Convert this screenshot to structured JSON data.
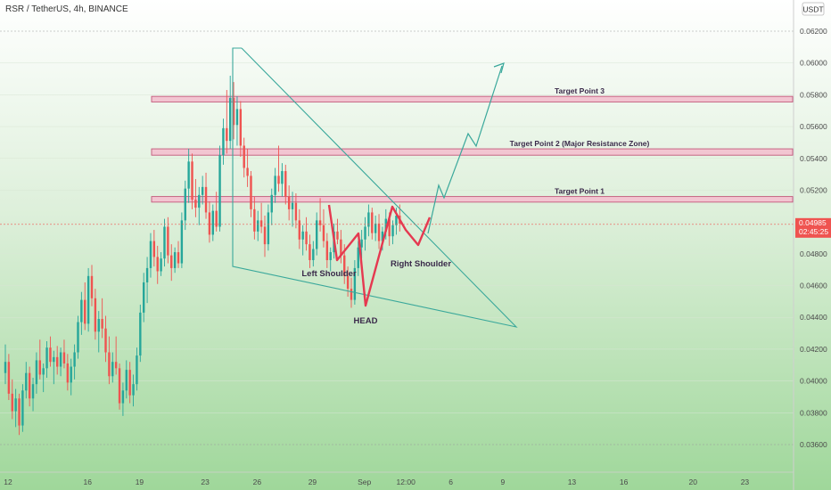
{
  "header": {
    "symbol": "RSR / TetherUS, 4h, BINANCE",
    "currency_badge": "USDT"
  },
  "colors": {
    "bg_top": "#ffffff",
    "bg_bottom": "#9fd79a",
    "up_candle": "#26a69a",
    "down_candle": "#ef5350",
    "pattern_line": "#e53950",
    "wedge_line": "#3aa89b",
    "target_fill": "#f2c5d1",
    "target_stroke": "#c3577a",
    "price_badge": "#ef5350",
    "text_dark": "#3a2a4a",
    "axis_text": "#4a4a4a"
  },
  "price_badge": {
    "price": "0.04985",
    "countdown": "02:45:25",
    "value": 0.04985
  },
  "chart_data": {
    "type": "candlestick",
    "y_axis": {
      "min": 0.0354,
      "max": 0.0628,
      "ticks": [
        "0.06200",
        "0.06000",
        "0.05800",
        "0.05600",
        "0.05400",
        "0.05200",
        "0.05000",
        "0.04800",
        "0.04600",
        "0.04400",
        "0.04200",
        "0.04000",
        "0.03800",
        "0.03600"
      ],
      "tick_values": [
        0.062,
        0.06,
        0.058,
        0.056,
        0.054,
        0.052,
        0.05,
        0.048,
        0.046,
        0.044,
        0.042,
        0.04,
        0.038,
        0.036
      ]
    },
    "x_axis": {
      "labels": [
        "12",
        "16",
        "19",
        "23",
        "26",
        "29",
        "Sep",
        "12:00",
        "6",
        "9",
        "13",
        "16",
        "20",
        "23"
      ],
      "label_bars": [
        0,
        23,
        38,
        57,
        72,
        88,
        103,
        115,
        128,
        143,
        163,
        178,
        198,
        213
      ],
      "total_bars": 225
    },
    "candles_ohlc": [
      [
        0.0405,
        0.0423,
        0.0398,
        0.0412
      ],
      [
        0.0412,
        0.0417,
        0.0388,
        0.0392
      ],
      [
        0.0392,
        0.0401,
        0.0376,
        0.0381
      ],
      [
        0.0381,
        0.0395,
        0.0371,
        0.0389
      ],
      [
        0.0389,
        0.0392,
        0.0366,
        0.0372
      ],
      [
        0.0372,
        0.0398,
        0.0368,
        0.0394
      ],
      [
        0.0394,
        0.0412,
        0.0389,
        0.0405
      ],
      [
        0.0405,
        0.0409,
        0.0384,
        0.0389
      ],
      [
        0.0389,
        0.0402,
        0.0381,
        0.0398
      ],
      [
        0.0398,
        0.0418,
        0.0392,
        0.0413
      ],
      [
        0.0413,
        0.0426,
        0.0401,
        0.0404
      ],
      [
        0.0404,
        0.0411,
        0.0393,
        0.0408
      ],
      [
        0.0408,
        0.0425,
        0.0402,
        0.0421
      ],
      [
        0.0421,
        0.0428,
        0.0409,
        0.0412
      ],
      [
        0.0412,
        0.0419,
        0.0398,
        0.0415
      ],
      [
        0.0415,
        0.0422,
        0.0404,
        0.0409
      ],
      [
        0.0409,
        0.0421,
        0.0403,
        0.0418
      ],
      [
        0.0418,
        0.0426,
        0.0408,
        0.0411
      ],
      [
        0.0411,
        0.0417,
        0.0394,
        0.0399
      ],
      [
        0.0399,
        0.0414,
        0.0391,
        0.0409
      ],
      [
        0.0409,
        0.0423,
        0.0401,
        0.0418
      ],
      [
        0.0418,
        0.0441,
        0.0414,
        0.0437
      ],
      [
        0.0437,
        0.0456,
        0.0429,
        0.0451
      ],
      [
        0.0451,
        0.0462,
        0.0432,
        0.0436
      ],
      [
        0.0436,
        0.0471,
        0.0431,
        0.0466
      ],
      [
        0.0466,
        0.0473,
        0.0447,
        0.0452
      ],
      [
        0.0452,
        0.0458,
        0.0426,
        0.0431
      ],
      [
        0.0431,
        0.0444,
        0.0418,
        0.0439
      ],
      [
        0.0439,
        0.0452,
        0.0427,
        0.0433
      ],
      [
        0.0433,
        0.0441,
        0.0412,
        0.0418
      ],
      [
        0.0418,
        0.0428,
        0.0398,
        0.0403
      ],
      [
        0.0403,
        0.0418,
        0.0399,
        0.0412
      ],
      [
        0.0412,
        0.0428,
        0.0404,
        0.0408
      ],
      [
        0.0408,
        0.0411,
        0.0382,
        0.0386
      ],
      [
        0.0386,
        0.0399,
        0.0378,
        0.0394
      ],
      [
        0.0394,
        0.0413,
        0.0389,
        0.0407
      ],
      [
        0.0407,
        0.0412,
        0.0386,
        0.0391
      ],
      [
        0.0391,
        0.0404,
        0.0384,
        0.0398
      ],
      [
        0.0398,
        0.0421,
        0.0394,
        0.0416
      ],
      [
        0.0416,
        0.0448,
        0.0412,
        0.0443
      ],
      [
        0.0443,
        0.0468,
        0.0437,
        0.0462
      ],
      [
        0.0462,
        0.0478,
        0.0449,
        0.0471
      ],
      [
        0.0471,
        0.0493,
        0.0465,
        0.0488
      ],
      [
        0.0488,
        0.0495,
        0.0472,
        0.0478
      ],
      [
        0.0478,
        0.0485,
        0.0461,
        0.0469
      ],
      [
        0.0469,
        0.0481,
        0.0466,
        0.0477
      ],
      [
        0.0477,
        0.0502,
        0.0472,
        0.0497
      ],
      [
        0.0497,
        0.0503,
        0.0474,
        0.0479
      ],
      [
        0.0479,
        0.0486,
        0.0463,
        0.0471
      ],
      [
        0.0471,
        0.0484,
        0.0468,
        0.0481
      ],
      [
        0.0481,
        0.0488,
        0.0471,
        0.0474
      ],
      [
        0.0474,
        0.0506,
        0.0471,
        0.0501
      ],
      [
        0.0501,
        0.0526,
        0.0495,
        0.0521
      ],
      [
        0.0521,
        0.0546,
        0.0512,
        0.0538
      ],
      [
        0.0538,
        0.0543,
        0.0508,
        0.0514
      ],
      [
        0.0514,
        0.0527,
        0.0503,
        0.0509
      ],
      [
        0.0509,
        0.0522,
        0.0498,
        0.0517
      ],
      [
        0.0517,
        0.0529,
        0.0511,
        0.0522
      ],
      [
        0.0522,
        0.0531,
        0.0502,
        0.0506
      ],
      [
        0.0506,
        0.0513,
        0.0487,
        0.0492
      ],
      [
        0.0492,
        0.0511,
        0.0488,
        0.0507
      ],
      [
        0.0507,
        0.0519,
        0.0494,
        0.0497
      ],
      [
        0.0497,
        0.0548,
        0.0494,
        0.0542
      ],
      [
        0.0542,
        0.0565,
        0.0536,
        0.0559
      ],
      [
        0.0559,
        0.0583,
        0.0543,
        0.0551
      ],
      [
        0.0551,
        0.0592,
        0.0546,
        0.0578
      ],
      [
        0.0578,
        0.0588,
        0.0552,
        0.0561
      ],
      [
        0.0561,
        0.0579,
        0.0548,
        0.0571
      ],
      [
        0.0571,
        0.0576,
        0.0541,
        0.0548
      ],
      [
        0.0548,
        0.0553,
        0.0528,
        0.0534
      ],
      [
        0.0534,
        0.0546,
        0.0522,
        0.0529
      ],
      [
        0.0529,
        0.0532,
        0.0503,
        0.0508
      ],
      [
        0.0508,
        0.0516,
        0.0489,
        0.0494
      ],
      [
        0.0494,
        0.0507,
        0.0488,
        0.0501
      ],
      [
        0.0501,
        0.0512,
        0.0493,
        0.0497
      ],
      [
        0.0497,
        0.0504,
        0.0478,
        0.0486
      ],
      [
        0.0486,
        0.0511,
        0.0482,
        0.0506
      ],
      [
        0.0506,
        0.0521,
        0.0498,
        0.0517
      ],
      [
        0.0517,
        0.0534,
        0.0512,
        0.0529
      ],
      [
        0.0529,
        0.0548,
        0.0519,
        0.0524
      ],
      [
        0.0524,
        0.0537,
        0.0516,
        0.0532
      ],
      [
        0.0532,
        0.0536,
        0.0511,
        0.0516
      ],
      [
        0.0516,
        0.0523,
        0.0501,
        0.0508
      ],
      [
        0.0508,
        0.0519,
        0.0497,
        0.0512
      ],
      [
        0.0512,
        0.0518,
        0.0496,
        0.0501
      ],
      [
        0.0501,
        0.0508,
        0.0483,
        0.0489
      ],
      [
        0.0489,
        0.0498,
        0.0479,
        0.0494
      ],
      [
        0.0494,
        0.0503,
        0.0482,
        0.0486
      ],
      [
        0.0486,
        0.0492,
        0.0471,
        0.0476
      ],
      [
        0.0476,
        0.0488,
        0.0472,
        0.0483
      ],
      [
        0.0483,
        0.0506,
        0.0479,
        0.0501
      ],
      [
        0.0501,
        0.0515,
        0.0494,
        0.0498
      ],
      [
        0.0498,
        0.0508,
        0.0484,
        0.0488
      ],
      [
        0.0488,
        0.0493,
        0.0471,
        0.0476
      ],
      [
        0.0476,
        0.0484,
        0.0469,
        0.0481
      ],
      [
        0.0481,
        0.0499,
        0.0477,
        0.0494
      ],
      [
        0.0494,
        0.0502,
        0.0486,
        0.0489
      ],
      [
        0.0489,
        0.0495,
        0.0474,
        0.0479
      ],
      [
        0.0479,
        0.0486,
        0.0461,
        0.0466
      ],
      [
        0.0466,
        0.0472,
        0.0453,
        0.0458
      ],
      [
        0.0458,
        0.0465,
        0.0446,
        0.0451
      ],
      [
        0.0451,
        0.0476,
        0.0448,
        0.0471
      ],
      [
        0.0471,
        0.0488,
        0.0466,
        0.0484
      ],
      [
        0.0484,
        0.0495,
        0.0477,
        0.0489
      ],
      [
        0.0489,
        0.0503,
        0.0482,
        0.0497
      ],
      [
        0.0497,
        0.0511,
        0.0491,
        0.0506
      ],
      [
        0.0506,
        0.0509,
        0.0489,
        0.0493
      ],
      [
        0.0493,
        0.0504,
        0.0488,
        0.0499
      ],
      [
        0.0499,
        0.0505,
        0.0483,
        0.0488
      ],
      [
        0.0488,
        0.0497,
        0.0482,
        0.0494
      ],
      [
        0.0494,
        0.0508,
        0.0489,
        0.0502
      ],
      [
        0.0502,
        0.0506,
        0.0485,
        0.0491
      ],
      [
        0.0491,
        0.0501,
        0.0486,
        0.0498
      ],
      [
        0.0498,
        0.0509,
        0.0492,
        0.0504
      ],
      [
        0.0504,
        0.0511,
        0.0494,
        0.0499
      ]
    ],
    "target_zones": [
      {
        "label": "Target Point 3",
        "low": 0.05755,
        "high": 0.0579
      },
      {
        "label": "Target Point 2 (Major Resistance Zone)",
        "low": 0.0542,
        "high": 0.0546
      },
      {
        "label": "Target Point 1",
        "low": 0.05125,
        "high": 0.0516
      }
    ],
    "annotations": {
      "left_shoulder": "Left Shoulder",
      "head": "HEAD",
      "right_shoulder": "Right Shoulder"
    }
  }
}
